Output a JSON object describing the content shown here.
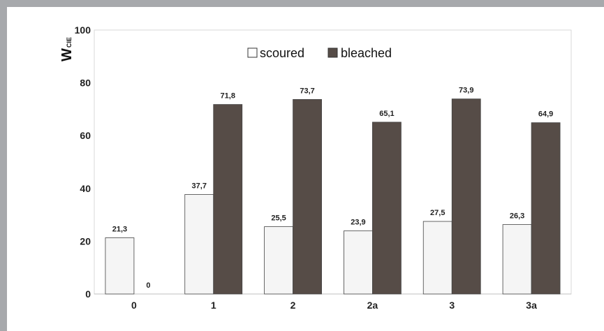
{
  "chart_data": {
    "type": "bar",
    "categories": [
      "0",
      "1",
      "2",
      "2a",
      "3",
      "3a"
    ],
    "series": [
      {
        "name": "scoured",
        "values": [
          21.3,
          37.7,
          25.5,
          23.9,
          27.5,
          26.3
        ],
        "labels": [
          "21,3",
          "37,7",
          "25,5",
          "23,9",
          "27,5",
          "26,3"
        ],
        "color": "#f5f5f5"
      },
      {
        "name": "bleached",
        "values": [
          0,
          71.8,
          73.7,
          65.1,
          73.9,
          64.9
        ],
        "labels": [
          "0",
          "71,8",
          "73,7",
          "65,1",
          "73,9",
          "64,9"
        ],
        "color": "#564c47"
      }
    ],
    "ylabel": "W",
    "ylabel_sub": "CIE",
    "xlabel": "",
    "ylim": [
      0,
      100
    ],
    "yticks": [
      0,
      20,
      40,
      60,
      80,
      100
    ],
    "grid": false,
    "legend": "top-center"
  }
}
